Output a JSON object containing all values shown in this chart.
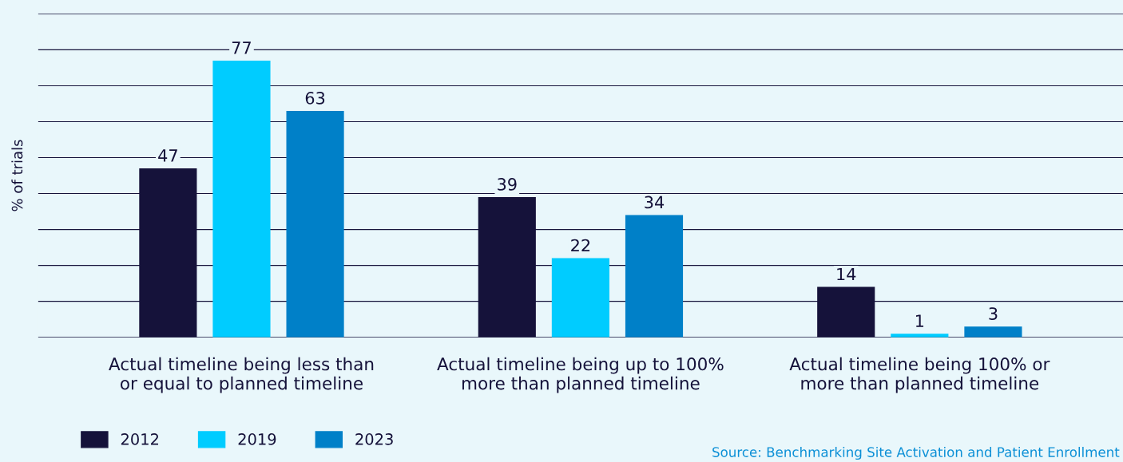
{
  "chart_data": {
    "type": "bar",
    "ylabel": "% of trials",
    "categories": [
      "Actual timeline being less than\nor equal to planned timeline",
      "Actual timeline being up to 100%\nmore than planned timeline",
      "Actual timeline being 100% or\nmore than planned timeline"
    ],
    "series": [
      {
        "name": "2012",
        "color": "#15123a",
        "values": [
          47,
          39,
          14
        ]
      },
      {
        "name": "2019",
        "color": "#00ccff",
        "values": [
          77,
          22,
          1
        ]
      },
      {
        "name": "2023",
        "color": "#0080c8",
        "values": [
          63,
          34,
          3
        ]
      }
    ],
    "ylim": [
      0,
      90
    ],
    "yticks": [
      {
        "value": 0,
        "label": null
      },
      {
        "value": 10,
        "label": null
      },
      {
        "value": 20,
        "label": null
      },
      {
        "value": 30,
        "label": null
      },
      {
        "value": 40,
        "label": null
      },
      {
        "value": 50,
        "label": null
      },
      {
        "value": 60,
        "label": null
      },
      {
        "value": 70,
        "label": null
      },
      {
        "value": 80,
        "label": null
      },
      {
        "value": 90,
        "label": null
      }
    ],
    "grid": "y",
    "data_labels": true,
    "legend": "bottom left",
    "annotations": [
      "Source: Benchmarking Site Activation and Patient Enrollment"
    ]
  }
}
